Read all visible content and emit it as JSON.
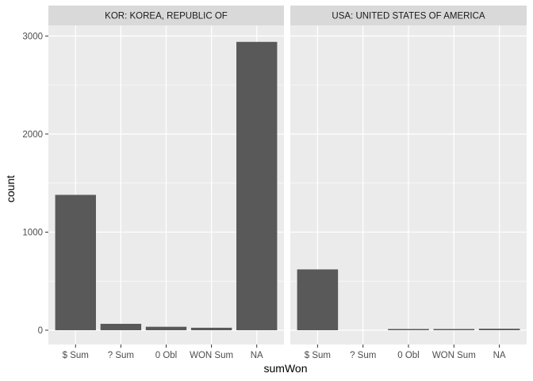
{
  "chart_data": {
    "type": "bar",
    "facet": true,
    "xlabel": "sumWon",
    "ylabel": "count",
    "ylim": [
      0,
      3100
    ],
    "yticks": [
      0,
      1000,
      2000,
      3000
    ],
    "categories": [
      "$ Sum",
      "? Sum",
      "0 Obl",
      "WON Sum",
      "NA"
    ],
    "panels": [
      {
        "label": "KOR: KOREA, REPUBLIC OF",
        "values": [
          1380,
          65,
          35,
          25,
          2940
        ]
      },
      {
        "label": "USA: UNITED STATES OF AMERICA",
        "values": [
          620,
          0,
          8,
          8,
          15
        ]
      }
    ],
    "colors": {
      "bar": "#595959",
      "panel_bg": "#ebebeb",
      "strip_bg": "#d9d9d9",
      "grid": "#ffffff"
    }
  }
}
